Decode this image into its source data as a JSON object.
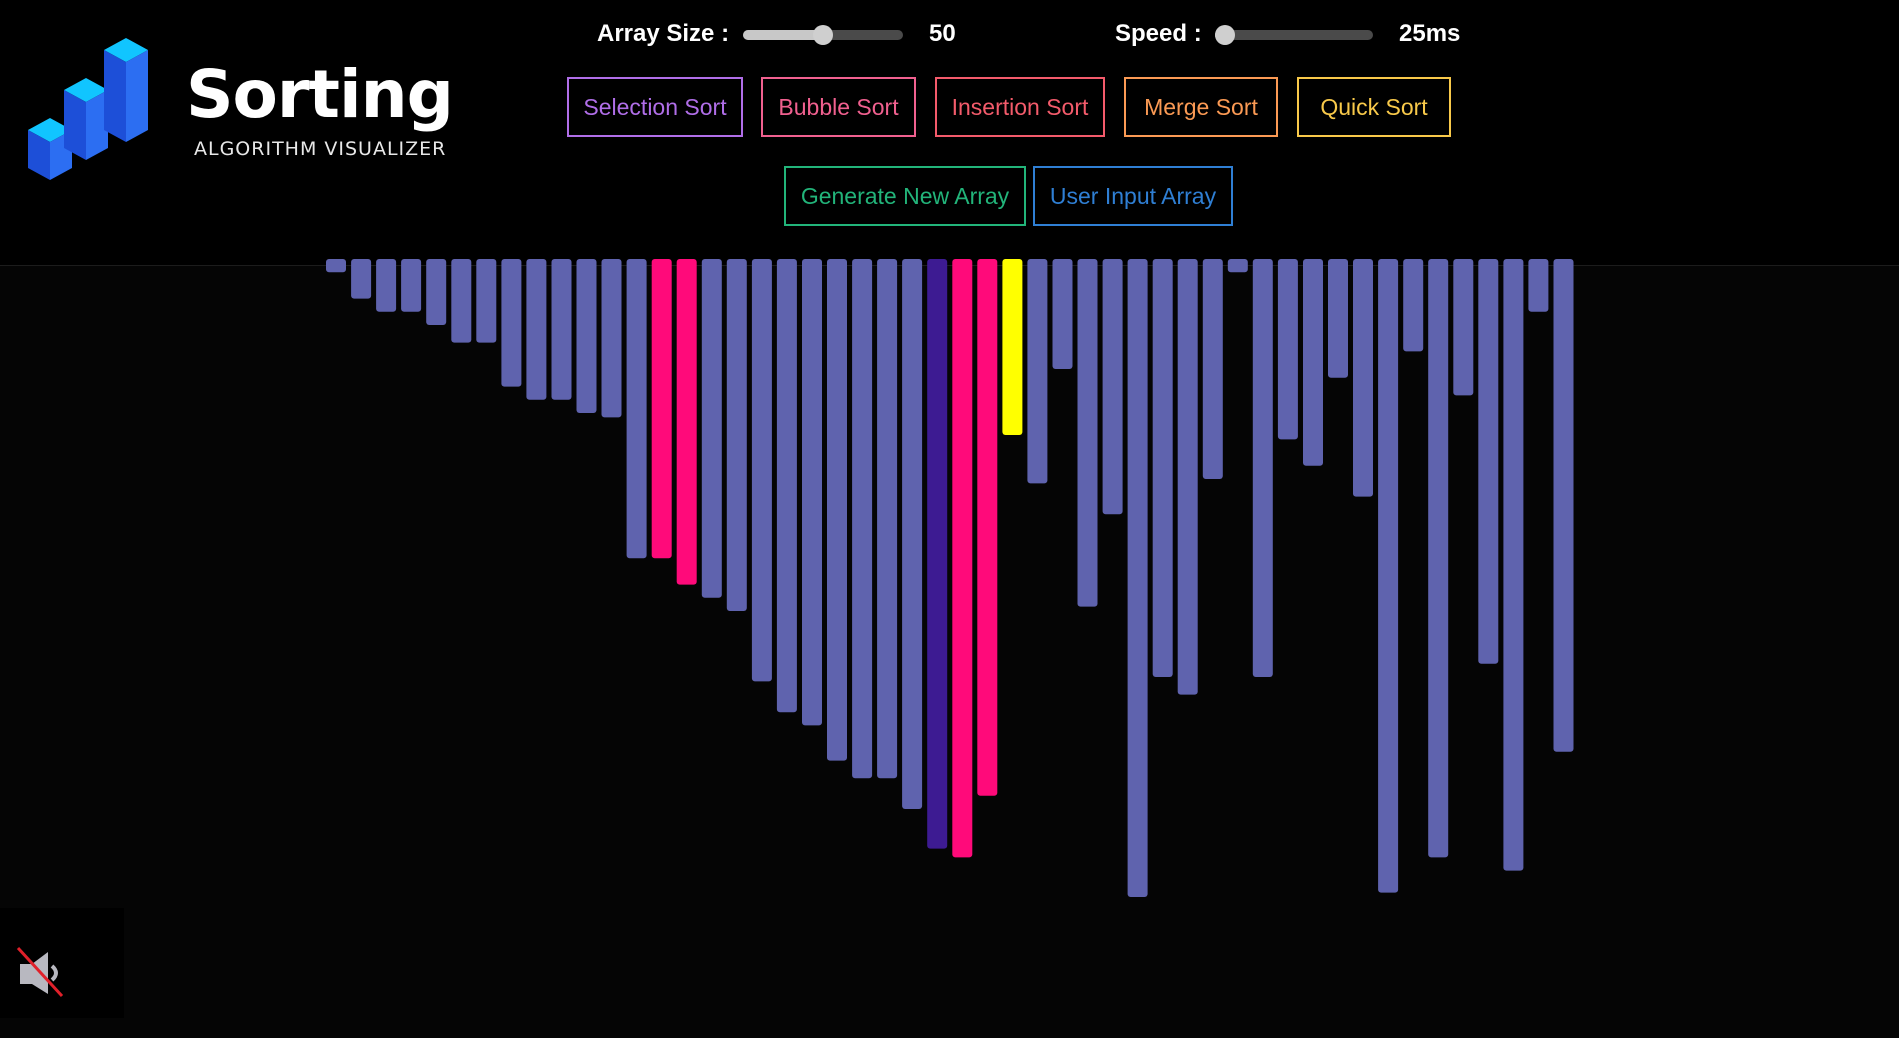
{
  "logo": {
    "title": "Sorting",
    "subtitle": "ALGORITHM VISUALIZER"
  },
  "controls": {
    "array_size": {
      "label": "Array Size :",
      "value": "50",
      "fraction": 0.5
    },
    "speed": {
      "label": "Speed :",
      "value": "25ms",
      "fraction": 0.0
    }
  },
  "buttons": {
    "selection": {
      "label": "Selection Sort",
      "color": "#b06ee8"
    },
    "bubble": {
      "label": "Bubble Sort",
      "color": "#f0608f"
    },
    "insertion": {
      "label": "Insertion Sort",
      "color": "#f35b6b"
    },
    "merge": {
      "label": "Merge Sort",
      "color": "#fb9a54"
    },
    "quick": {
      "label": "Quick Sort",
      "color": "#f8c94a"
    },
    "generate": {
      "label": "Generate New Array",
      "color": "#22b47a"
    },
    "user_input": {
      "label": "User Input Array",
      "color": "#2f7fd4"
    }
  },
  "colors": {
    "bar_default": "#5f63ae",
    "bar_compare": "#ff0a7a",
    "bar_current": "#ffff00",
    "bar_selected": "#3d1b92",
    "mute_slash": "#e0202a",
    "logo_blue": "#2c6ef2",
    "logo_cyan": "#11c5ff"
  },
  "icons": {
    "mute": "speaker-muted-icon",
    "logo": "stacked-cubes-logo"
  },
  "chart_data": {
    "type": "bar",
    "orientation": "down",
    "values": [
      3,
      9,
      12,
      12,
      15,
      19,
      19,
      29,
      32,
      32,
      35,
      36,
      68,
      68,
      74,
      77,
      80,
      96,
      103,
      106,
      114,
      118,
      118,
      125,
      134,
      136,
      122,
      40,
      51,
      25,
      79,
      58,
      145,
      95,
      99,
      50,
      3,
      95,
      41,
      47,
      27,
      54,
      144,
      21,
      136,
      31,
      92,
      139,
      12,
      112
    ],
    "states": [
      "d",
      "d",
      "d",
      "d",
      "d",
      "d",
      "d",
      "d",
      "d",
      "d",
      "d",
      "d",
      "d",
      "c",
      "c",
      "d",
      "d",
      "d",
      "d",
      "d",
      "d",
      "d",
      "d",
      "d",
      "s",
      "c",
      "c",
      "y",
      "d",
      "d",
      "d",
      "d",
      "d",
      "d",
      "d",
      "d",
      "d",
      "d",
      "d",
      "d",
      "d",
      "d",
      "d",
      "d",
      "d",
      "d",
      "d",
      "d",
      "d",
      "d"
    ],
    "state_legend": {
      "d": "bar_default",
      "c": "bar_compare",
      "y": "bar_current",
      "s": "bar_selected"
    }
  }
}
